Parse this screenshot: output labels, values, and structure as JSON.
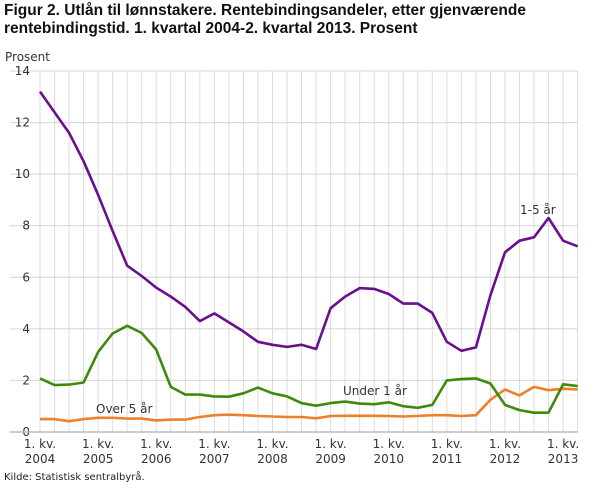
{
  "chart_data": {
    "type": "line",
    "title": "Figur 2. Utlån til lønnstakere. Rentebindingsandeler, etter gjenværende rentebindingstid. 1. kvartal 2004-2. kvartal 2013. Prosent",
    "ylabel": "Prosent",
    "xlabel": "",
    "ylim": [
      0,
      14
    ],
    "yticks": [
      0,
      2,
      4,
      6,
      8,
      10,
      12,
      14
    ],
    "xtick_labels": [
      [
        "1. kv.",
        "2004"
      ],
      [
        "1. kv.",
        "2005"
      ],
      [
        "1. kv.",
        "2006"
      ],
      [
        "1. kv.",
        "2007"
      ],
      [
        "1. kv.",
        "2008"
      ],
      [
        "1. kv.",
        "2009"
      ],
      [
        "1. kv.",
        "2010"
      ],
      [
        "1. kv.",
        "2011"
      ],
      [
        "1. kv.",
        "2012"
      ],
      [
        "1. kv.",
        "2013"
      ]
    ],
    "x_start": "2004 Q1",
    "x_end": "2013 Q2",
    "grid": true,
    "series": [
      {
        "name": "1-5 år",
        "color": "#6a0f8e",
        "values": [
          13.2,
          12.4,
          11.6,
          10.5,
          9.2,
          7.8,
          6.45,
          6.05,
          5.6,
          5.25,
          4.85,
          4.3,
          4.6,
          4.25,
          3.9,
          3.5,
          3.38,
          3.3,
          3.38,
          3.22,
          4.8,
          5.25,
          5.58,
          5.55,
          5.35,
          4.98,
          4.98,
          4.62,
          3.5,
          3.15,
          3.28,
          5.3,
          6.97,
          7.42,
          7.55,
          8.3,
          7.42,
          7.2
        ]
      },
      {
        "name": "Under 1 år",
        "color": "#3f8a0a",
        "values": [
          2.08,
          1.82,
          1.84,
          1.92,
          3.1,
          3.82,
          4.12,
          3.84,
          3.2,
          1.75,
          1.45,
          1.45,
          1.38,
          1.37,
          1.5,
          1.72,
          1.5,
          1.38,
          1.12,
          1.02,
          1.12,
          1.18,
          1.1,
          1.08,
          1.15,
          1.0,
          0.94,
          1.05,
          2.0,
          2.05,
          2.08,
          1.88,
          1.05,
          0.85,
          0.75,
          0.75,
          1.85,
          1.78
        ]
      },
      {
        "name": "Over 5 år",
        "color": "#f07f2a",
        "values": [
          0.5,
          0.5,
          0.42,
          0.5,
          0.55,
          0.55,
          0.52,
          0.52,
          0.45,
          0.48,
          0.48,
          0.58,
          0.65,
          0.67,
          0.65,
          0.62,
          0.6,
          0.58,
          0.58,
          0.53,
          0.62,
          0.63,
          0.63,
          0.63,
          0.62,
          0.6,
          0.62,
          0.65,
          0.65,
          0.62,
          0.65,
          1.25,
          1.65,
          1.42,
          1.75,
          1.62,
          1.68,
          1.65
        ]
      }
    ],
    "source": "Kilde: Statistisk sentralbyrå."
  }
}
